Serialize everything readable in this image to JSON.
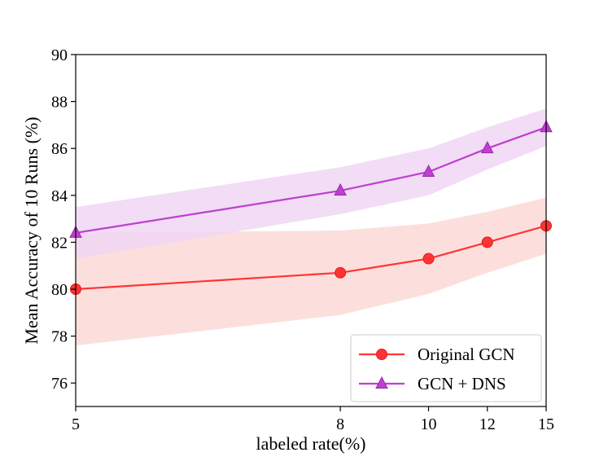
{
  "chart_data": {
    "type": "line",
    "xlabel": "labeled rate(%)",
    "ylabel": "Mean Accuracy of 10 Runs (%)",
    "x": [
      5,
      8,
      10,
      12,
      15
    ],
    "xlim": [
      5,
      15
    ],
    "ylim": [
      75,
      90
    ],
    "xticks": [
      5,
      8,
      10,
      12,
      15
    ],
    "yticks": [
      76,
      78,
      80,
      82,
      84,
      86,
      88,
      90
    ],
    "grid": false,
    "legend_position": "lower-right",
    "series": [
      {
        "name": "Original GCN",
        "color": "#ff3333",
        "band_color": "#fcd9d6",
        "marker": "circle",
        "values": [
          80.0,
          80.7,
          81.3,
          82.0,
          82.7
        ],
        "lower": [
          77.6,
          78.9,
          79.8,
          80.7,
          81.5
        ],
        "upper": [
          82.4,
          82.5,
          82.8,
          83.3,
          83.9
        ]
      },
      {
        "name": "GCN + DNS",
        "color": "#bf3fcf",
        "band_color": "#f0d6f5",
        "marker": "triangle",
        "values": [
          82.4,
          84.2,
          85.0,
          86.0,
          86.9
        ],
        "lower": [
          81.3,
          83.2,
          84.0,
          85.1,
          86.1
        ],
        "upper": [
          83.5,
          85.2,
          86.0,
          86.9,
          87.7
        ]
      }
    ]
  }
}
